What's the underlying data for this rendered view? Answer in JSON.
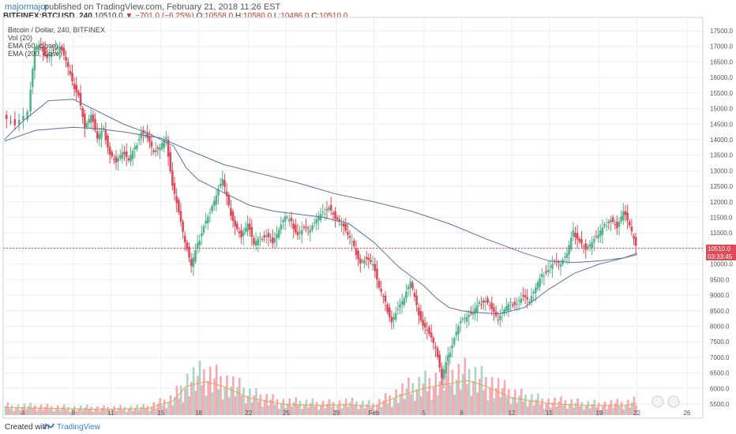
{
  "header": {
    "user": "majormajor",
    "published": "published on TradingView.com, February 21, 2018 11:26 EST"
  },
  "ohlc_line": {
    "symbol": "BITFINEX:BTCUSD, 240",
    "last": "10510.0",
    "change": "▼ −701.0 (−6.25%)",
    "o_label": "O:",
    "o": "10558.0",
    "h_label": "H:",
    "h": "10580.0",
    "l_label": "L:",
    "l": "10486.0",
    "c_label": "C:",
    "c": "10510.0"
  },
  "legend": {
    "title": "Bitcoin / Dollar, 240, BITFINEX",
    "vol": "Vol (20)",
    "ema50": "EMA (50, close)",
    "ema200": "EMA (200, close)"
  },
  "price_tags": {
    "last_price": "10510.0",
    "countdown": "03:33:45"
  },
  "footer": {
    "created": "Created with",
    "brand": "TradingView"
  },
  "chart_data": {
    "type": "candlestick",
    "title": "Bitcoin / Dollar, 240, BITFINEX",
    "y_ticks": [
      5500,
      6000,
      6500,
      7000,
      7500,
      8000,
      8500,
      9000,
      9500,
      10000,
      10500,
      11000,
      11500,
      12000,
      12500,
      13000,
      13500,
      14000,
      14500,
      15000,
      15500,
      16000,
      16500,
      17000,
      17500
    ],
    "y_tick_labels": [
      "5500.0",
      "6000.0",
      "6500.0",
      "7000.0",
      "7500.0",
      "8000.0",
      "8500.0",
      "9000.0",
      "9500.0",
      "10000.0",
      "10500.0",
      "11000.0",
      "11500.0",
      "12000.0",
      "12500.0",
      "13000.0",
      "13500.0",
      "14000.0",
      "14500.0",
      "15000.0",
      "15500.0",
      "16000.0",
      "16500.0",
      "17000.0",
      "17500.0"
    ],
    "ylim": [
      5300,
      17800
    ],
    "x_ticks": [
      "4",
      "8",
      "11",
      "15",
      "18",
      "22",
      "25",
      "29",
      "Feb",
      "5",
      "8",
      "12",
      "15",
      "19",
      "22",
      "26"
    ],
    "x_tick_days": [
      4,
      8,
      11,
      15,
      18,
      22,
      25,
      29,
      32,
      36,
      39,
      43,
      46,
      50,
      53,
      57
    ],
    "xlim_days": [
      2.4,
      58.3
    ],
    "last_price": 10510,
    "price_path": [
      [
        2.5,
        14800
      ],
      [
        3.5,
        14500
      ],
      [
        4.5,
        14900
      ],
      [
        5.0,
        16900
      ],
      [
        5.5,
        17000
      ],
      [
        6.0,
        16700
      ],
      [
        6.5,
        16900
      ],
      [
        7.0,
        17000
      ],
      [
        7.5,
        16500
      ],
      [
        8.0,
        15800
      ],
      [
        8.5,
        15500
      ],
      [
        9.0,
        14400
      ],
      [
        9.5,
        14800
      ],
      [
        10.0,
        14000
      ],
      [
        10.5,
        14300
      ],
      [
        11.0,
        13600
      ],
      [
        11.5,
        13300
      ],
      [
        12.0,
        13600
      ],
      [
        12.5,
        13300
      ],
      [
        13.0,
        13700
      ],
      [
        13.5,
        14300
      ],
      [
        14.0,
        14100
      ],
      [
        14.5,
        13600
      ],
      [
        15.0,
        13700
      ],
      [
        15.5,
        14000
      ],
      [
        16.0,
        12600
      ],
      [
        16.5,
        11700
      ],
      [
        17.0,
        10700
      ],
      [
        17.5,
        9900
      ],
      [
        18.0,
        10600
      ],
      [
        18.5,
        11300
      ],
      [
        19.0,
        11700
      ],
      [
        19.5,
        12200
      ],
      [
        20.0,
        12700
      ],
      [
        20.5,
        11800
      ],
      [
        21.0,
        11300
      ],
      [
        21.5,
        10900
      ],
      [
        22.0,
        11300
      ],
      [
        22.5,
        10600
      ],
      [
        23.0,
        10800
      ],
      [
        23.5,
        11000
      ],
      [
        24.0,
        10700
      ],
      [
        24.5,
        11100
      ],
      [
        25.0,
        11500
      ],
      [
        25.5,
        11300
      ],
      [
        26.0,
        11000
      ],
      [
        26.5,
        11200
      ],
      [
        27.0,
        11100
      ],
      [
        27.5,
        11400
      ],
      [
        28.0,
        11600
      ],
      [
        28.5,
        11900
      ],
      [
        29.0,
        11500
      ],
      [
        29.5,
        11300
      ],
      [
        30.0,
        10900
      ],
      [
        30.5,
        10500
      ],
      [
        31.0,
        10100
      ],
      [
        31.5,
        10200
      ],
      [
        32.0,
        10000
      ],
      [
        32.5,
        9200
      ],
      [
        33.0,
        8700
      ],
      [
        33.5,
        8200
      ],
      [
        34.0,
        8600
      ],
      [
        34.5,
        8900
      ],
      [
        35.0,
        9400
      ],
      [
        35.5,
        8600
      ],
      [
        36.0,
        8100
      ],
      [
        36.5,
        7800
      ],
      [
        37.0,
        7300
      ],
      [
        37.5,
        6300
      ],
      [
        38.0,
        7000
      ],
      [
        38.5,
        7700
      ],
      [
        39.0,
        8200
      ],
      [
        39.5,
        8300
      ],
      [
        40.0,
        8400
      ],
      [
        40.5,
        8700
      ],
      [
        41.0,
        8900
      ],
      [
        41.5,
        8600
      ],
      [
        42.0,
        8200
      ],
      [
        42.5,
        8500
      ],
      [
        43.0,
        8700
      ],
      [
        43.5,
        8800
      ],
      [
        44.0,
        9000
      ],
      [
        44.5,
        8800
      ],
      [
        45.0,
        9200
      ],
      [
        45.5,
        9600
      ],
      [
        46.0,
        9900
      ],
      [
        46.5,
        10100
      ],
      [
        47.0,
        10000
      ],
      [
        47.5,
        10300
      ],
      [
        48.0,
        11000
      ],
      [
        48.5,
        10800
      ],
      [
        49.0,
        10500
      ],
      [
        49.5,
        10700
      ],
      [
        50.0,
        10900
      ],
      [
        50.5,
        11200
      ],
      [
        51.0,
        11500
      ],
      [
        51.5,
        11200
      ],
      [
        52.0,
        11700
      ],
      [
        52.5,
        11200
      ],
      [
        53.0,
        10510
      ]
    ],
    "ema50": [
      [
        2.5,
        14000
      ],
      [
        4.0,
        14600
      ],
      [
        6.0,
        15250
      ],
      [
        8.0,
        15300
      ],
      [
        10.0,
        14900
      ],
      [
        12.0,
        14500
      ],
      [
        14.0,
        14200
      ],
      [
        16.0,
        13800
      ],
      [
        17.0,
        13100
      ],
      [
        18.0,
        12700
      ],
      [
        20.0,
        12300
      ],
      [
        22.0,
        11900
      ],
      [
        24.0,
        11700
      ],
      [
        26.0,
        11600
      ],
      [
        28.0,
        11500
      ],
      [
        30.0,
        11300
      ],
      [
        31.0,
        11000
      ],
      [
        32.0,
        10700
      ],
      [
        33.0,
        10300
      ],
      [
        34.0,
        9900
      ],
      [
        35.0,
        9600
      ],
      [
        36.0,
        9300
      ],
      [
        37.0,
        8900
      ],
      [
        38.0,
        8600
      ],
      [
        39.0,
        8500
      ],
      [
        40.0,
        8450
      ],
      [
        42.0,
        8400
      ],
      [
        44.0,
        8600
      ],
      [
        46.0,
        9200
      ],
      [
        48.0,
        9700
      ],
      [
        50.0,
        10000
      ],
      [
        51.0,
        10100
      ],
      [
        52.0,
        10200
      ],
      [
        53.0,
        10350
      ]
    ],
    "ema200": [
      [
        2.5,
        13950
      ],
      [
        5.0,
        14300
      ],
      [
        8.0,
        14400
      ],
      [
        10.0,
        14350
      ],
      [
        12.0,
        14250
      ],
      [
        15.0,
        14050
      ],
      [
        17.0,
        13700
      ],
      [
        20.0,
        13200
      ],
      [
        23.0,
        12900
      ],
      [
        26.0,
        12600
      ],
      [
        29.0,
        12250
      ],
      [
        32.0,
        12000
      ],
      [
        35.0,
        11700
      ],
      [
        38.0,
        11300
      ],
      [
        41.0,
        10800
      ],
      [
        44.0,
        10350
      ],
      [
        46.0,
        10100
      ],
      [
        48.0,
        10050
      ],
      [
        50.0,
        10100
      ],
      [
        52.0,
        10200
      ],
      [
        53.0,
        10300
      ]
    ],
    "volume": {
      "ma_color": "#f0a050",
      "bar_up": "#a8d8c4",
      "bar_down": "#f2aab4",
      "ma_path": [
        [
          2.5,
          0.08
        ],
        [
          6.0,
          0.07
        ],
        [
          10.0,
          0.06
        ],
        [
          14.0,
          0.07
        ],
        [
          16.0,
          0.15
        ],
        [
          17.0,
          0.3
        ],
        [
          18.5,
          0.35
        ],
        [
          20.0,
          0.3
        ],
        [
          22.0,
          0.18
        ],
        [
          25.0,
          0.11
        ],
        [
          28.0,
          0.1
        ],
        [
          30.0,
          0.11
        ],
        [
          32.0,
          0.09
        ],
        [
          34.0,
          0.2
        ],
        [
          36.0,
          0.28
        ],
        [
          38.0,
          0.33
        ],
        [
          39.5,
          0.36
        ],
        [
          41.0,
          0.3
        ],
        [
          43.0,
          0.18
        ],
        [
          46.0,
          0.12
        ],
        [
          49.0,
          0.1
        ],
        [
          52.0,
          0.1
        ],
        [
          53.0,
          0.12
        ]
      ]
    },
    "colors": {
      "up": "#54b38c",
      "down": "#e04a58",
      "ema50": "#5a6fa8",
      "ema200": "#5a6fa8",
      "last_price_line": "#e04a58",
      "grid": "#eeeeee"
    }
  }
}
